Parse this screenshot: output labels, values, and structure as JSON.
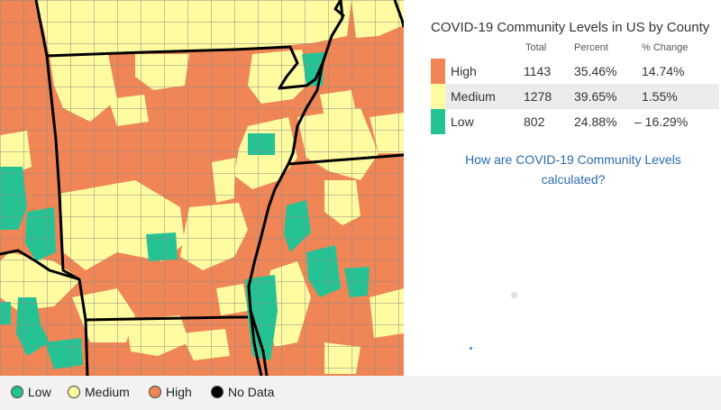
{
  "summary": {
    "title": "COVID-19 Community Levels in US by County",
    "columns": {
      "total": "Total",
      "percent": "Percent",
      "change": "% Change"
    },
    "rows": [
      {
        "level": "High",
        "total": "1143",
        "percent": "35.46%",
        "change": "14.74%",
        "color": "#f08556"
      },
      {
        "level": "Medium",
        "total": "1278",
        "percent": "39.65%",
        "change": "1.55%",
        "color": "#fefba0"
      },
      {
        "level": "Low",
        "total": "802",
        "percent": "24.88%",
        "change": "– 16.29%",
        "color": "#25c394"
      }
    ],
    "link_text": "How are COVID-19 Community Levels calculated?"
  },
  "legend": {
    "items": [
      {
        "label": "Low",
        "color": "#25c394"
      },
      {
        "label": "Medium",
        "color": "#fefba0"
      },
      {
        "label": "High",
        "color": "#f08556"
      },
      {
        "label": "No Data",
        "color": "#000000"
      }
    ]
  },
  "map": {
    "county_border_color": "#8c8c8c",
    "state_border_color": "#000000"
  }
}
